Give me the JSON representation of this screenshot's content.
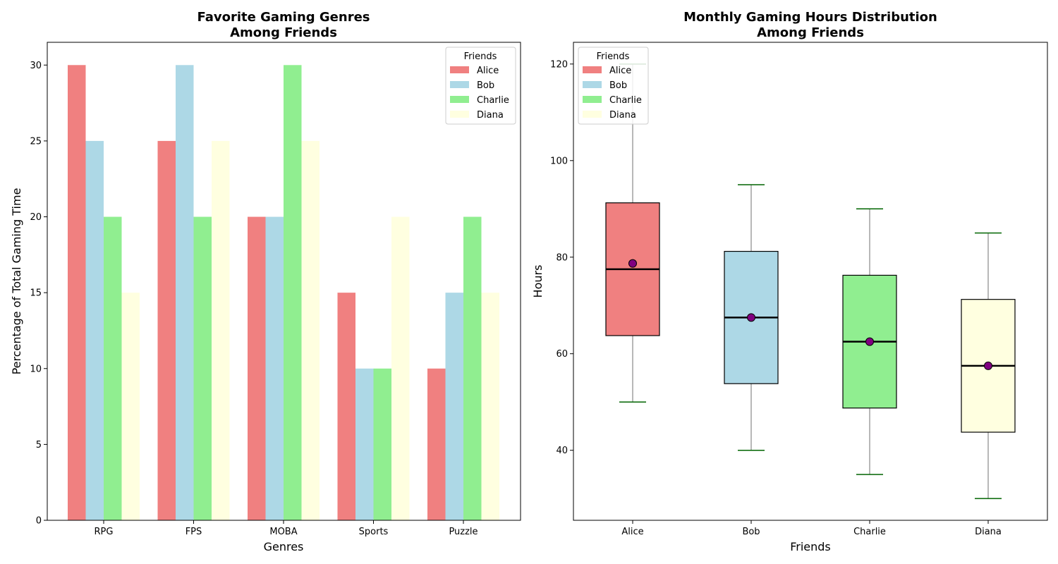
{
  "chart_data": [
    {
      "type": "bar",
      "title_lines": [
        "Favorite Gaming Genres",
        "Among Friends"
      ],
      "xlabel": "Genres",
      "ylabel": "Percentage of Total Gaming Time",
      "categories": [
        "RPG",
        "FPS",
        "MOBA",
        "Sports",
        "Puzzle"
      ],
      "ylim": [
        0,
        31.5
      ],
      "yticks": [
        0,
        5,
        10,
        15,
        20,
        25,
        30
      ],
      "legend": {
        "title": "Friends",
        "position": "top-right"
      },
      "series": [
        {
          "name": "Alice",
          "color": "#f08080",
          "values": [
            30,
            25,
            20,
            15,
            10
          ]
        },
        {
          "name": "Bob",
          "color": "#add8e6",
          "values": [
            25,
            30,
            20,
            10,
            15
          ]
        },
        {
          "name": "Charlie",
          "color": "#90ee90",
          "values": [
            20,
            20,
            30,
            10,
            20
          ]
        },
        {
          "name": "Diana",
          "color": "#ffffe0",
          "values": [
            15,
            25,
            25,
            20,
            15
          ]
        }
      ]
    },
    {
      "type": "box",
      "title_lines": [
        "Monthly Gaming Hours Distribution",
        "Among Friends"
      ],
      "xlabel": "Friends",
      "ylabel": "Hours",
      "categories": [
        "Alice",
        "Bob",
        "Charlie",
        "Diana"
      ],
      "ylim": [
        25.5,
        124.5
      ],
      "yticks": [
        40,
        60,
        80,
        100,
        120
      ],
      "legend": {
        "title": "Friends",
        "position": "top-left"
      },
      "boxes": [
        {
          "name": "Alice",
          "color": "#f08080",
          "whisker_low": 50,
          "q1": 63.75,
          "median": 77.5,
          "q3": 91.25,
          "whisker_high": 120,
          "mean": 78.7
        },
        {
          "name": "Bob",
          "color": "#add8e6",
          "whisker_low": 40,
          "q1": 53.8,
          "median": 67.5,
          "q3": 81.2,
          "whisker_high": 95,
          "mean": 67.5
        },
        {
          "name": "Charlie",
          "color": "#90ee90",
          "whisker_low": 35,
          "q1": 48.75,
          "median": 62.5,
          "q3": 76.25,
          "whisker_high": 90,
          "mean": 62.5
        },
        {
          "name": "Diana",
          "color": "#ffffe0",
          "whisker_low": 30,
          "q1": 43.75,
          "median": 57.5,
          "q3": 71.25,
          "whisker_high": 85,
          "mean": 57.5
        }
      ],
      "whisker_color": "#a0a0a0",
      "cap_color": "#006400",
      "median_color": "#000000",
      "mean_marker_color": "#800080"
    }
  ]
}
